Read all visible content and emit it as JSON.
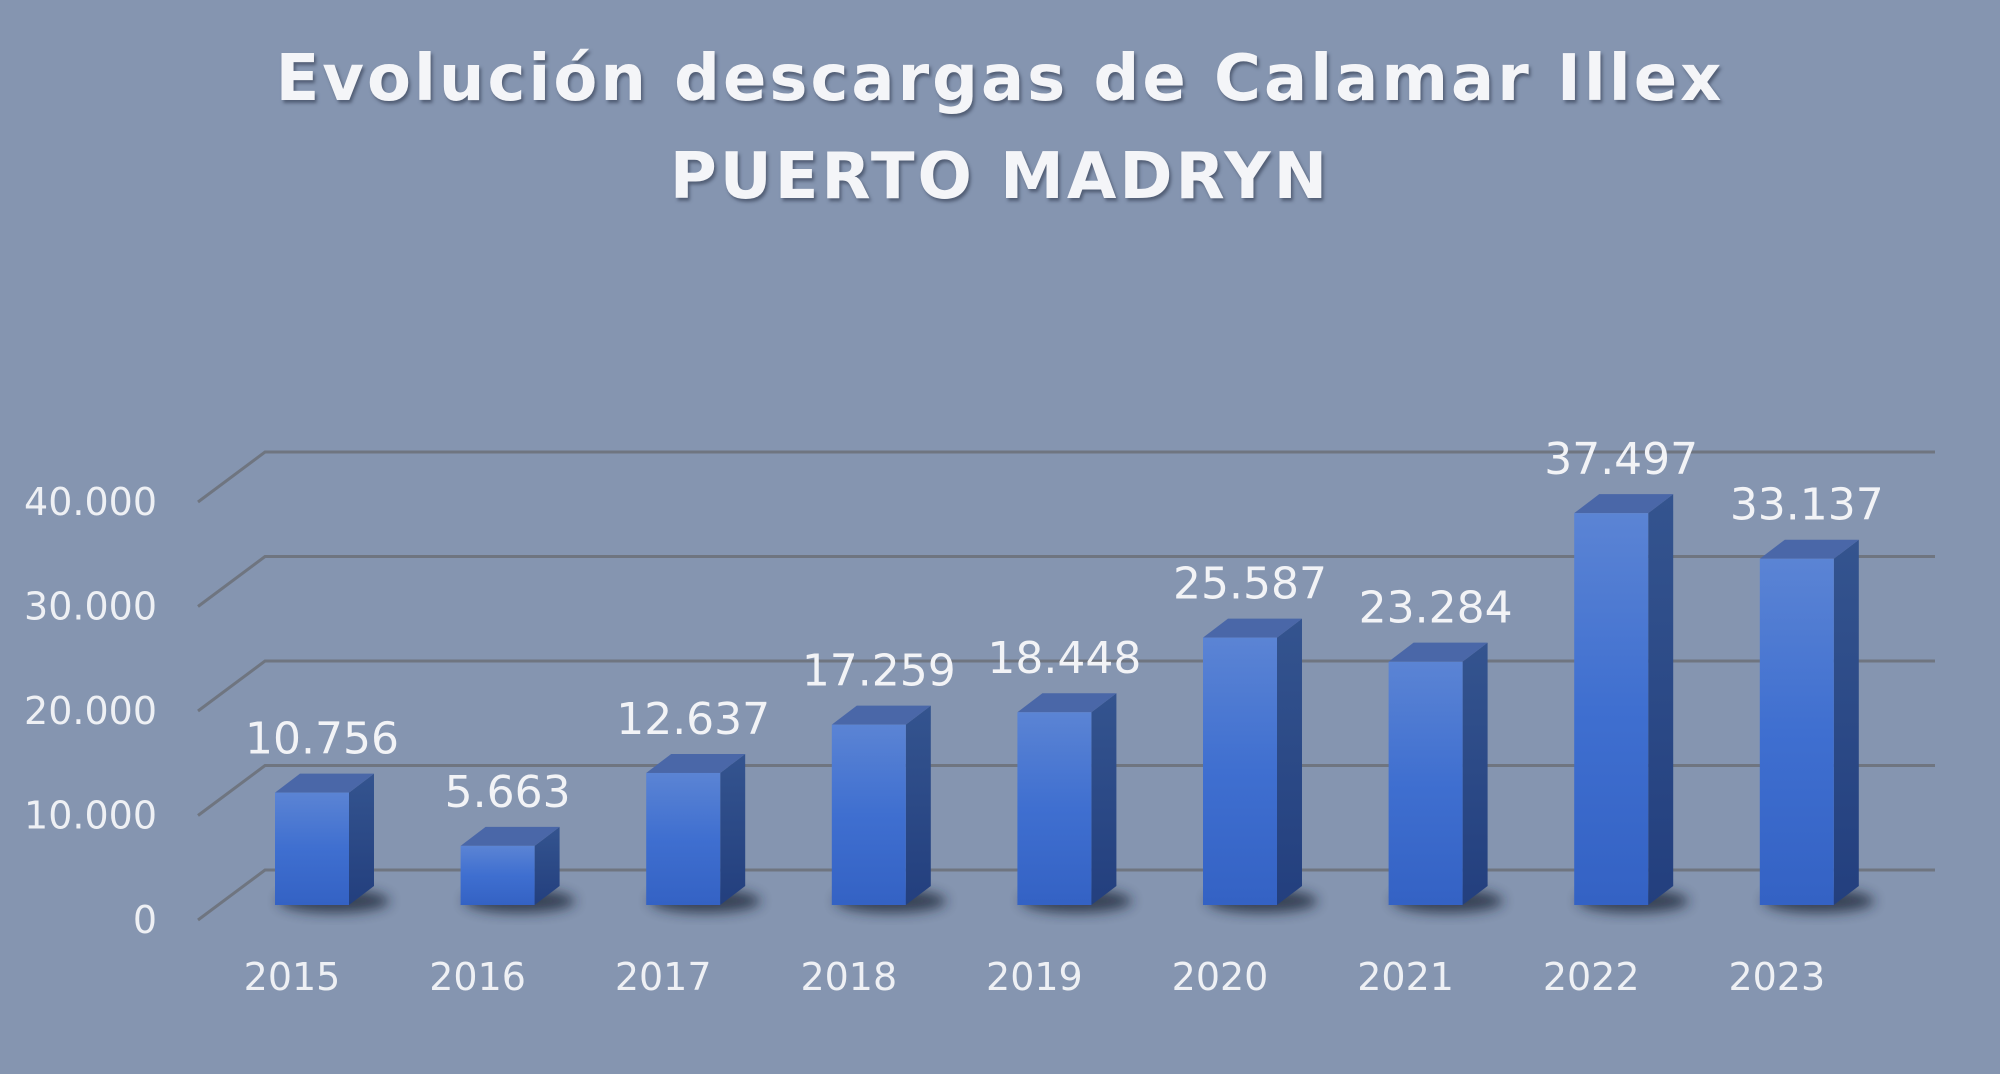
{
  "title": {
    "line1": "Evolución descargas de Calamar Illex",
    "line2": "PUERTO MADRYN"
  },
  "colors": {
    "background": "#8595b0",
    "bar_front": "#3f6fd0",
    "bar_side": "#2b4b8e",
    "bar_top": "#4a67a8",
    "gridline": "#6f7580",
    "text": "#eef0f4"
  },
  "y_axis": {
    "ticks": [
      "0",
      "10.000",
      "20.000",
      "30.000",
      "40.000"
    ]
  },
  "x_axis": {
    "categories": [
      "2015",
      "2016",
      "2017",
      "2018",
      "2019",
      "2020",
      "2021",
      "2022",
      "2023"
    ]
  },
  "data_labels": [
    "10.756",
    "5.663",
    "12.637",
    "17.259",
    "18.448",
    "25.587",
    "23.284",
    "37.497",
    "33.137"
  ],
  "chart_data": {
    "type": "bar",
    "style": "3d-column",
    "title": "Evolución descargas de Calamar Illex PUERTO MADRYN",
    "categories": [
      "2015",
      "2016",
      "2017",
      "2018",
      "2019",
      "2020",
      "2021",
      "2022",
      "2023"
    ],
    "values": [
      10756,
      5663,
      12637,
      17259,
      18448,
      25587,
      23284,
      37497,
      33137
    ],
    "data_labels": [
      "10.756",
      "5.663",
      "12.637",
      "17.259",
      "18.448",
      "25.587",
      "23.284",
      "37.497",
      "33.137"
    ],
    "xlabel": "",
    "ylabel": "",
    "ylim": [
      0,
      40000
    ],
    "yticks": [
      0,
      10000,
      20000,
      30000,
      40000
    ],
    "grid": true,
    "legend": "none"
  }
}
